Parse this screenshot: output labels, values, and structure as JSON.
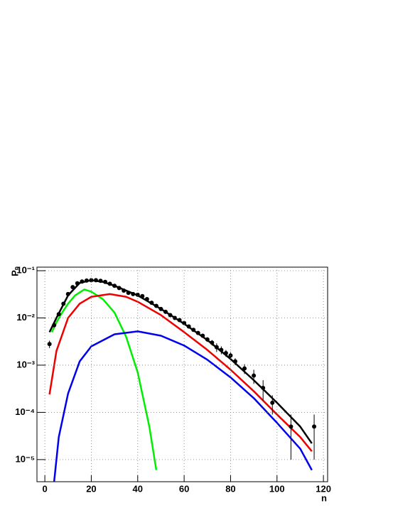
{
  "chart_data": {
    "type": "line",
    "x_label": "n",
    "y_label": "Pₙ",
    "log_y": true,
    "grid": true,
    "xlim": [
      -3.4,
      121.8
    ],
    "ylim": [
      3.4e-06,
      0.119
    ],
    "xticks": [
      0,
      20,
      40,
      60,
      80,
      100,
      120
    ],
    "yticks": [
      {
        "value": 1e-05,
        "label": "10⁻⁵"
      },
      {
        "value": 0.0001,
        "label": "10⁻⁴"
      },
      {
        "value": 0.001,
        "label": "10⁻³"
      },
      {
        "value": 0.01,
        "label": "10⁻²"
      },
      {
        "value": 0.1,
        "label": "10⁻¹"
      }
    ],
    "series": [
      {
        "type": "line",
        "color": "#00ee00",
        "x": [
          3,
          5,
          7,
          10,
          13,
          17,
          20,
          25,
          30,
          35,
          40,
          45,
          48
        ],
        "values": [
          0.005,
          0.008,
          0.012,
          0.02,
          0.03,
          0.04,
          0.036,
          0.025,
          0.013,
          0.004,
          0.0007,
          5e-05,
          6e-06
        ]
      },
      {
        "type": "line",
        "color": "#ee0000",
        "x": [
          2,
          5,
          10,
          15,
          20,
          28,
          35,
          40,
          50,
          60,
          70,
          80,
          90,
          100,
          110,
          115
        ],
        "values": [
          0.00024,
          0.002,
          0.01,
          0.02,
          0.028,
          0.032,
          0.028,
          0.022,
          0.0115,
          0.005,
          0.0021,
          0.0008,
          0.00028,
          9e-05,
          3e-05,
          1.5e-05
        ]
      },
      {
        "type": "line",
        "color": "#0000ee",
        "x": [
          4,
          6,
          10,
          15,
          20,
          30,
          40,
          50,
          60,
          70,
          80,
          90,
          100,
          110,
          115
        ],
        "values": [
          3.4e-06,
          3e-05,
          0.00025,
          0.0012,
          0.0025,
          0.0045,
          0.0052,
          0.0042,
          0.0026,
          0.0013,
          0.00055,
          0.0002,
          6e-05,
          1.7e-05,
          6e-06
        ]
      },
      {
        "type": "line",
        "color": "#000000",
        "x": [
          2,
          5,
          10,
          15,
          20,
          25,
          30,
          40,
          50,
          60,
          70,
          80,
          90,
          100,
          110,
          115
        ],
        "values": [
          0.005,
          0.01,
          0.03,
          0.055,
          0.063,
          0.058,
          0.048,
          0.03,
          0.0155,
          0.0075,
          0.0034,
          0.00135,
          0.00048,
          0.00016,
          5e-05,
          2.2e-05
        ]
      },
      {
        "type": "scatter",
        "color": "#000000",
        "x": [
          2,
          4,
          6,
          8,
          10,
          12,
          14,
          16,
          18,
          20,
          22,
          24,
          26,
          28,
          30,
          32,
          34,
          36,
          38,
          40,
          42,
          44,
          46,
          48,
          50,
          52,
          54,
          56,
          58,
          60,
          62,
          64,
          66,
          68,
          70,
          72,
          74,
          76,
          78,
          80,
          82,
          86,
          90,
          94,
          98,
          106,
          116
        ],
        "values": [
          0.0028,
          0.007,
          0.012,
          0.02,
          0.032,
          0.045,
          0.054,
          0.059,
          0.062,
          0.063,
          0.063,
          0.061,
          0.058,
          0.053,
          0.048,
          0.043,
          0.038,
          0.034,
          0.032,
          0.031,
          0.029,
          0.025,
          0.021,
          0.018,
          0.0155,
          0.0135,
          0.0115,
          0.01,
          0.009,
          0.0078,
          0.0066,
          0.0056,
          0.0048,
          0.0042,
          0.0035,
          0.003,
          0.0024,
          0.0021,
          0.0018,
          0.0016,
          0.0012,
          0.00085,
          0.0006,
          0.00033,
          0.00016,
          5e-05,
          5e-05
        ],
        "errors": [
          0.0005,
          0.0005,
          0.0006,
          0.0008,
          0.001,
          0.0012,
          0.0013,
          0.0014,
          0.0014,
          0.0014,
          0.0014,
          0.0014,
          0.0014,
          0.0013,
          0.0013,
          0.0012,
          0.0011,
          0.0011,
          0.001,
          0.001,
          0.001,
          0.0009,
          0.0008,
          0.0008,
          0.0007,
          0.0007,
          0.0006,
          0.0006,
          0.0005,
          0.0005,
          0.0005,
          0.0004,
          0.0004,
          0.0004,
          0.0004,
          0.0004,
          0.0005,
          0.0004,
          0.0003,
          0.0003,
          0.0002,
          0.0002,
          0.0002,
          0.00015,
          7e-05,
          4e-05,
          4e-05
        ]
      }
    ]
  }
}
